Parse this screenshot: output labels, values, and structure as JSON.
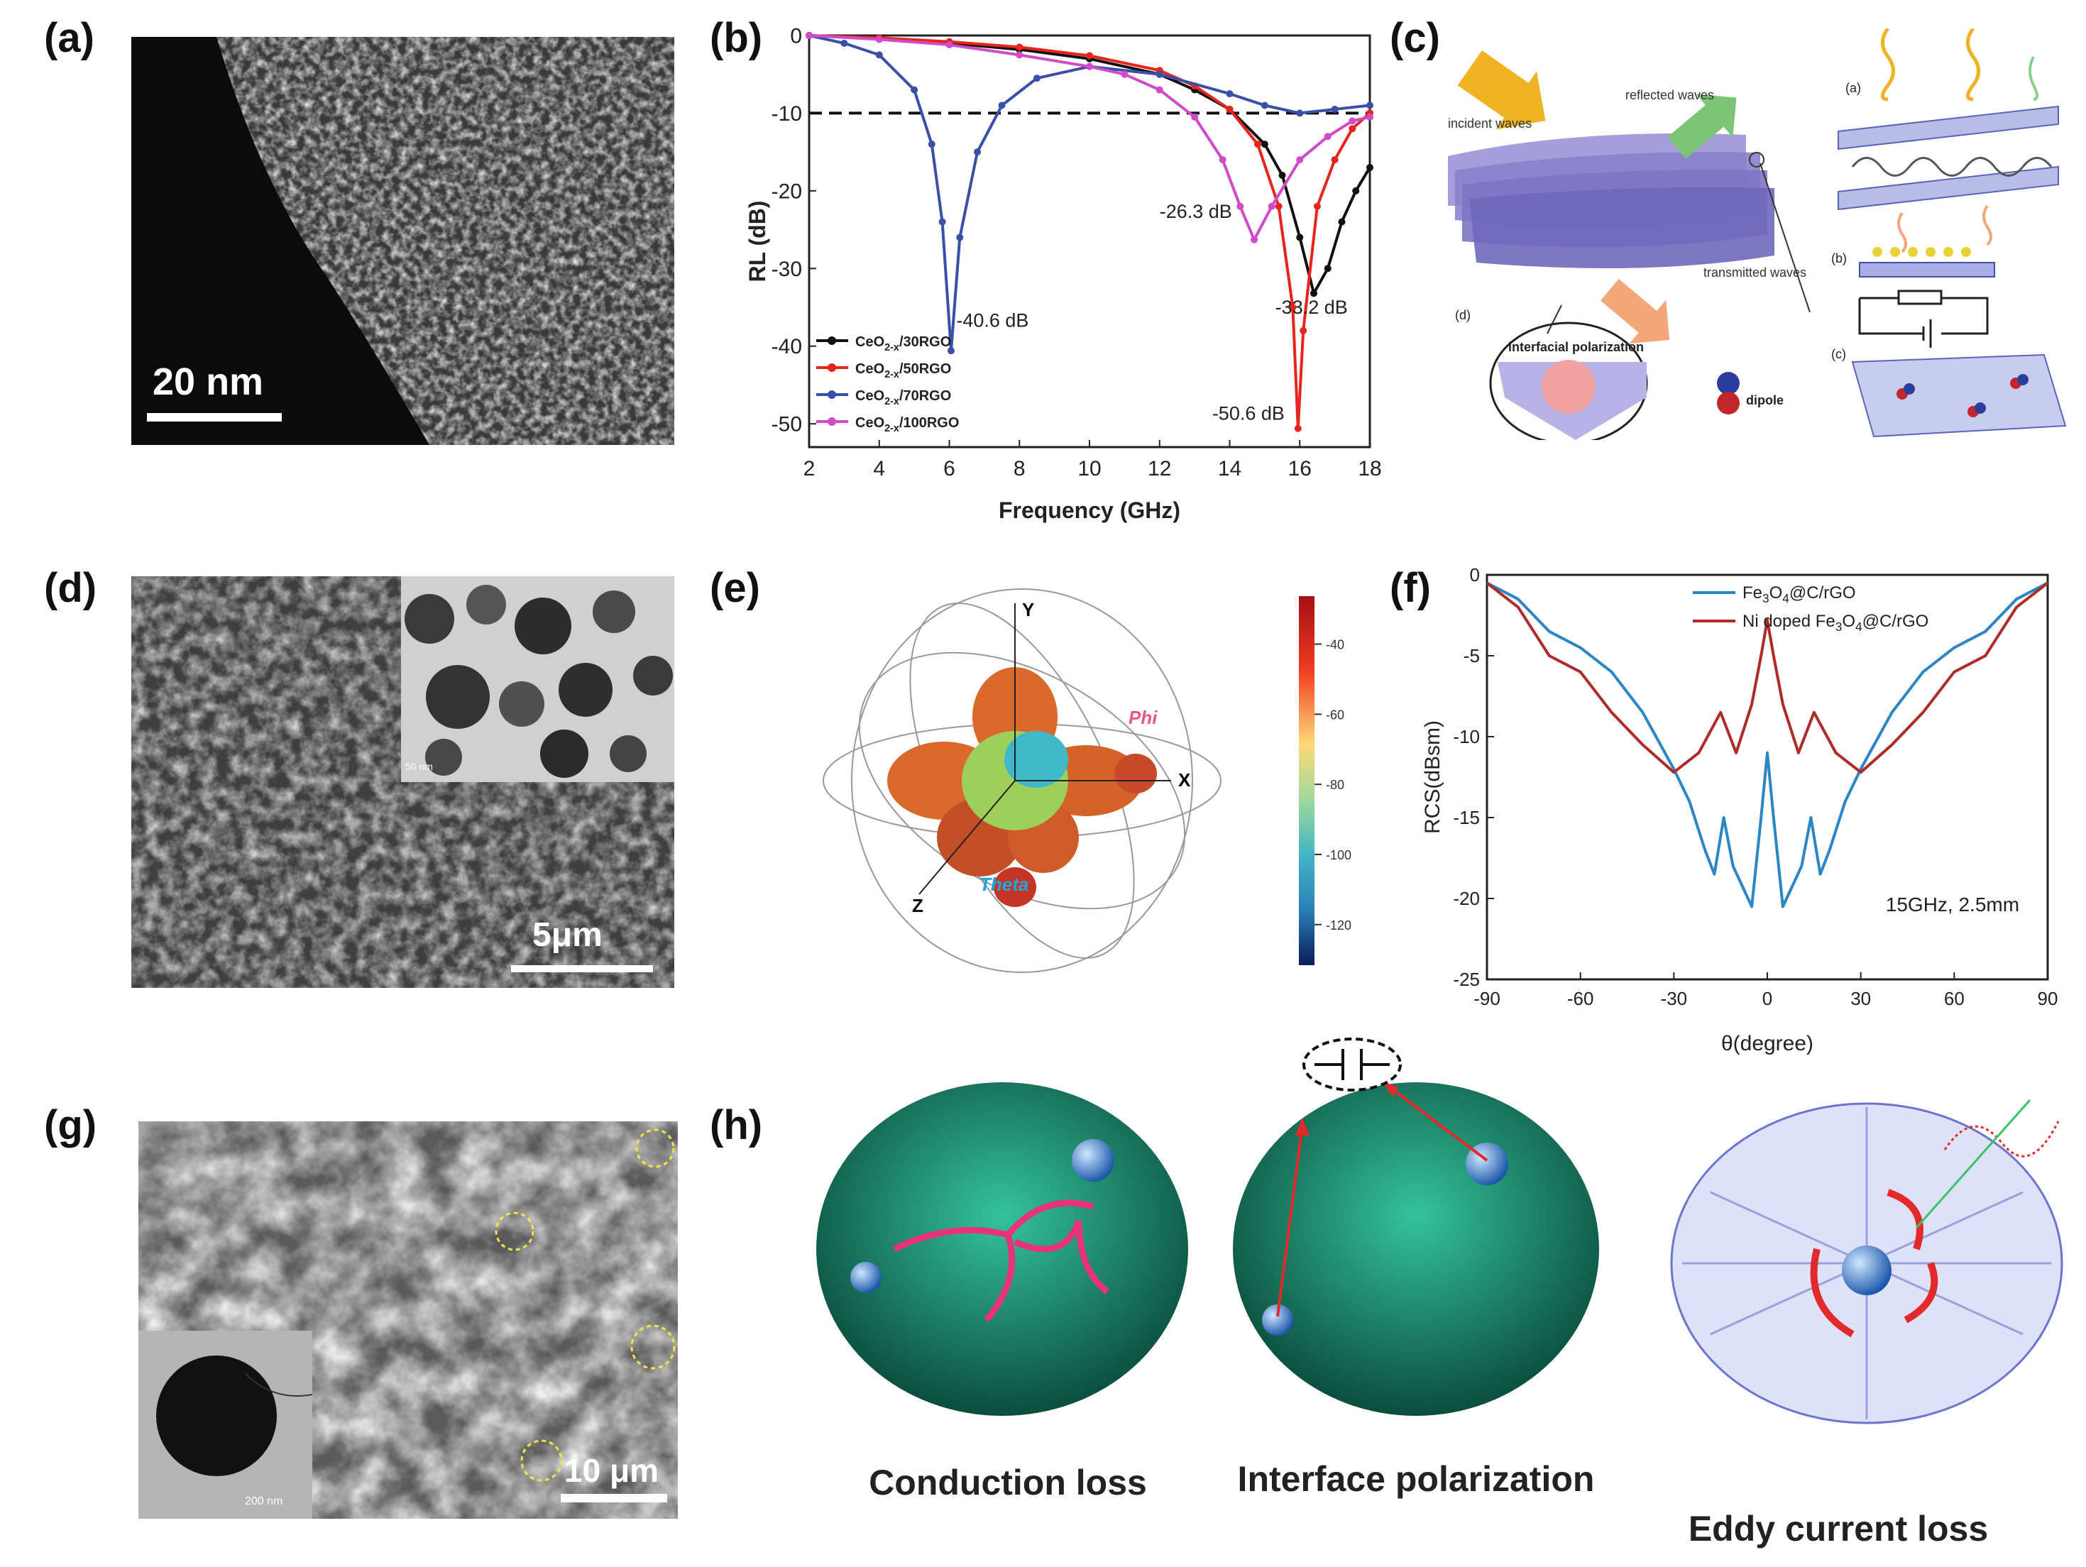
{
  "panel_labels": {
    "a": "(a)",
    "b": "(b)",
    "c": "(c)",
    "d": "(d)",
    "e": "(e)",
    "f": "(f)",
    "g": "(g)",
    "h": "(h)"
  },
  "panel_a": {
    "scale_label": "20 nm"
  },
  "panel_b": {
    "annotations": {
      "a1": "-40.6 dB",
      "a2": "-26.3 dB",
      "a3": "-33.2 dB",
      "a4": "-50.6 dB"
    }
  },
  "panel_c": {
    "labels": {
      "incident": "incident waves",
      "reflected": "reflected waves",
      "transmitted": "transmitted waves",
      "interfacial": "interfacial polarization",
      "dipole": "dipole",
      "sub_a": "(a)",
      "sub_b": "(b)",
      "sub_c": "(c)",
      "sub_d": "(d)"
    }
  },
  "panel_d": {
    "scale_label": "5μm",
    "inset_scale_label": "50 nm"
  },
  "panel_e": {
    "axis_y": "Y",
    "axis_x": "X",
    "axis_z": "Z",
    "phi": "Phi",
    "theta": "Theta",
    "colorbar_ticks": [
      "-40",
      "-60",
      "-80",
      "-100",
      "-120"
    ]
  },
  "panel_g": {
    "scale_label": "10 μm",
    "inset_scale_label": "200 nm"
  },
  "panel_h": {
    "captions": [
      "Conduction loss",
      "Interface polarization",
      "Eddy current loss"
    ]
  },
  "colors": {
    "black": "#111111",
    "red": "#e8241c",
    "blue": "#3a4fa8",
    "magenta": "#d04bc8",
    "blue_f": "#2a86c4",
    "red_f": "#b02a2a"
  },
  "chart_data": [
    {
      "id": "b",
      "type": "line",
      "xlabel": "Frequency (GHz)",
      "ylabel": "RL (dB)",
      "xlim": [
        2,
        18
      ],
      "ylim": [
        -53,
        0
      ],
      "xticks": [
        2,
        4,
        6,
        8,
        10,
        12,
        14,
        16,
        18
      ],
      "yticks": [
        0,
        -10,
        -20,
        -30,
        -40,
        -50
      ],
      "reference_line": -10,
      "legend_position": "bottom-left",
      "series": [
        {
          "name": "CeO2-x/30RGO",
          "color": "#111111",
          "points": [
            [
              2,
              0
            ],
            [
              4,
              -0.4
            ],
            [
              6,
              -1
            ],
            [
              8,
              -1.8
            ],
            [
              10,
              -3
            ],
            [
              12,
              -5
            ],
            [
              13,
              -7
            ],
            [
              14,
              -9.5
            ],
            [
              15,
              -14
            ],
            [
              15.5,
              -18
            ],
            [
              16,
              -26
            ],
            [
              16.4,
              -33.2
            ],
            [
              16.8,
              -30
            ],
            [
              17.2,
              -24
            ],
            [
              17.6,
              -20
            ],
            [
              18,
              -17
            ]
          ]
        },
        {
          "name": "CeO2-x/50RGO",
          "color": "#e8241c",
          "points": [
            [
              2,
              0
            ],
            [
              4,
              -0.3
            ],
            [
              6,
              -0.8
            ],
            [
              8,
              -1.5
            ],
            [
              10,
              -2.6
            ],
            [
              12,
              -4.5
            ],
            [
              13,
              -6.5
            ],
            [
              14,
              -9.5
            ],
            [
              14.8,
              -14
            ],
            [
              15.4,
              -22
            ],
            [
              15.8,
              -35
            ],
            [
              15.95,
              -50.6
            ],
            [
              16.1,
              -38
            ],
            [
              16.5,
              -22
            ],
            [
              17,
              -16
            ],
            [
              17.5,
              -12
            ],
            [
              18,
              -10
            ]
          ]
        },
        {
          "name": "CeO2-x/70RGO",
          "color": "#3a4fa8",
          "points": [
            [
              2,
              0
            ],
            [
              3,
              -1
            ],
            [
              4,
              -2.5
            ],
            [
              5,
              -7
            ],
            [
              5.5,
              -14
            ],
            [
              5.8,
              -24
            ],
            [
              6.05,
              -40.6
            ],
            [
              6.3,
              -26
            ],
            [
              6.8,
              -15
            ],
            [
              7.5,
              -9
            ],
            [
              8.5,
              -5.5
            ],
            [
              10,
              -4
            ],
            [
              12,
              -5
            ],
            [
              14,
              -7.5
            ],
            [
              15,
              -9
            ],
            [
              16,
              -10
            ],
            [
              17,
              -9.5
            ],
            [
              18,
              -9
            ]
          ]
        },
        {
          "name": "CeO2-x/100RGO",
          "color": "#d04bc8",
          "points": [
            [
              2,
              0
            ],
            [
              4,
              -0.5
            ],
            [
              6,
              -1.2
            ],
            [
              8,
              -2.5
            ],
            [
              10,
              -4
            ],
            [
              11,
              -5
            ],
            [
              12,
              -7
            ],
            [
              13,
              -10.5
            ],
            [
              13.8,
              -16
            ],
            [
              14.3,
              -22
            ],
            [
              14.7,
              -26.3
            ],
            [
              15.2,
              -22
            ],
            [
              16,
              -16
            ],
            [
              16.8,
              -13
            ],
            [
              17.5,
              -11
            ],
            [
              18,
              -10.5
            ]
          ]
        }
      ]
    },
    {
      "id": "f",
      "type": "line",
      "xlabel": "θ(degree)",
      "ylabel": "RCS(dBsm)",
      "xlim": [
        -90,
        90
      ],
      "ylim": [
        -25,
        0
      ],
      "xticks": [
        -90,
        -60,
        -30,
        0,
        30,
        60,
        90
      ],
      "yticks": [
        0,
        -5,
        -10,
        -15,
        -20,
        -25
      ],
      "annotation": "15GHz, 2.5mm",
      "legend_position": "top-right",
      "series": [
        {
          "name": "Fe3O4@C/rGO",
          "color": "#2a86c4",
          "points": [
            [
              -90,
              -0.5
            ],
            [
              -80,
              -1.5
            ],
            [
              -70,
              -3.5
            ],
            [
              -60,
              -4.5
            ],
            [
              -50,
              -6
            ],
            [
              -40,
              -8.5
            ],
            [
              -30,
              -12
            ],
            [
              -25,
              -14
            ],
            [
              -20,
              -17
            ],
            [
              -17,
              -18.5
            ],
            [
              -14,
              -15
            ],
            [
              -11,
              -18
            ],
            [
              -5,
              -20.5
            ],
            [
              -2,
              -15
            ],
            [
              0,
              -11
            ],
            [
              2,
              -15
            ],
            [
              5,
              -20.5
            ],
            [
              11,
              -18
            ],
            [
              14,
              -15
            ],
            [
              17,
              -18.5
            ],
            [
              20,
              -17
            ],
            [
              25,
              -14
            ],
            [
              30,
              -12
            ],
            [
              40,
              -8.5
            ],
            [
              50,
              -6
            ],
            [
              60,
              -4.5
            ],
            [
              70,
              -3.5
            ],
            [
              80,
              -1.5
            ],
            [
              90,
              -0.5
            ]
          ]
        },
        {
          "name": "Ni doped Fe3O4@C/rGO",
          "color": "#b02a2a",
          "points": [
            [
              -90,
              -0.5
            ],
            [
              -80,
              -2
            ],
            [
              -70,
              -5
            ],
            [
              -60,
              -6
            ],
            [
              -50,
              -8.5
            ],
            [
              -40,
              -10.5
            ],
            [
              -30,
              -12.2
            ],
            [
              -22,
              -11
            ],
            [
              -15,
              -8.5
            ],
            [
              -10,
              -11
            ],
            [
              -5,
              -8
            ],
            [
              -2,
              -5
            ],
            [
              0,
              -2.8
            ],
            [
              2,
              -5
            ],
            [
              5,
              -8
            ],
            [
              10,
              -11
            ],
            [
              15,
              -8.5
            ],
            [
              22,
              -11
            ],
            [
              30,
              -12.2
            ],
            [
              40,
              -10.5
            ],
            [
              50,
              -8.5
            ],
            [
              60,
              -6
            ],
            [
              70,
              -5
            ],
            [
              80,
              -2
            ],
            [
              90,
              -0.5
            ]
          ]
        }
      ]
    }
  ]
}
